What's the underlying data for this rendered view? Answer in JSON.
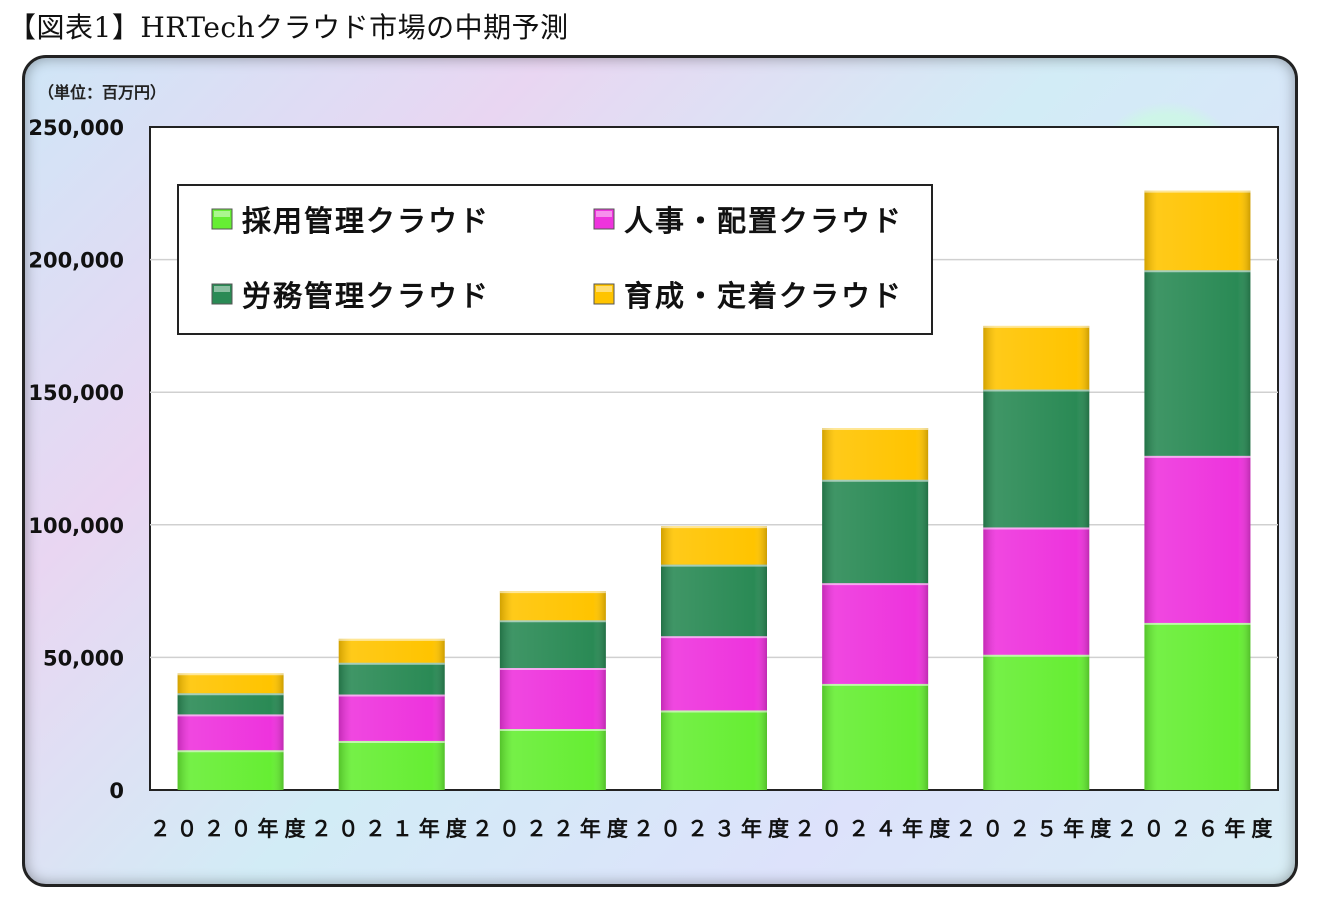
{
  "page": {
    "title": "【図表1】HRTechクラウド市場の中期予測"
  },
  "chart_data": {
    "type": "bar",
    "stacked": true,
    "unit_label": "（単位：百万円）",
    "categories": [
      "２０２０年度",
      "２０２１年度",
      "２０２２年度",
      "２０２３年度",
      "２０２４年度",
      "２０２５年度",
      "２０２６年度"
    ],
    "y_ticks": [
      "0",
      "50,000",
      "100,000",
      "150,000",
      "200,000",
      "250,000"
    ],
    "ylim": [
      0,
      250000
    ],
    "grid": true,
    "legend_placement": "top-left",
    "series": [
      {
        "name": "採用管理クラウド",
        "color": "#66ee33",
        "values": [
          15000,
          18500,
          23000,
          30000,
          40000,
          51000,
          63000
        ]
      },
      {
        "name": "人事・配置クラウド",
        "color": "#ee33dd",
        "values": [
          13500,
          17500,
          23000,
          28000,
          38000,
          48000,
          63000
        ]
      },
      {
        "name": "労務管理クラウド",
        "color": "#2a8a55",
        "values": [
          8000,
          12000,
          18000,
          27000,
          39000,
          52000,
          70000
        ]
      },
      {
        "name": "育成・定着クラウド",
        "color": "#ffc400",
        "values": [
          7500,
          9000,
          11000,
          14500,
          19500,
          24000,
          30000
        ]
      }
    ]
  }
}
